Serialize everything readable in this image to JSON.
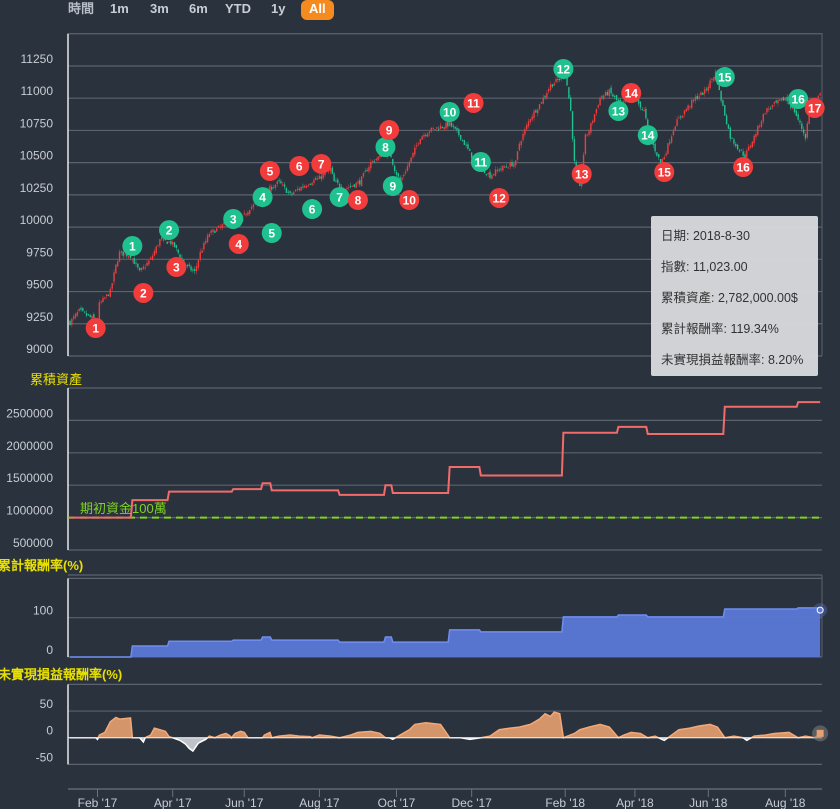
{
  "range_selector": {
    "label": "時間",
    "buttons": [
      "1m",
      "3m",
      "6m",
      "YTD",
      "1y",
      "All"
    ],
    "active": "All"
  },
  "tooltip": {
    "date": "日期: 2018-8-30",
    "index": "指數: 11,023.00",
    "assets": "累積資產: 2,782,000.00$",
    "cum_return": "累計報酬率: 119.34%",
    "unrealized": "未實現損益報酬率: 8.20%"
  },
  "colors": {
    "up": "#f23c3c",
    "down": "#1fc28e",
    "asset_line": "#f26b6b",
    "baseline": "#7ed321",
    "cum_fill": "#5a78d6",
    "unreal_pos": "#e8a070",
    "unreal_neg": "#e6e6e6",
    "title": "#e8e000",
    "accent": "#f58a1f"
  },
  "chart_data": [
    {
      "type": "candlestick",
      "title": "",
      "x_unit": "trading day index",
      "xlim": [
        0,
        410
      ],
      "ylim": [
        9000,
        11500
      ],
      "y_ticks": [
        "11250",
        "11000",
        "10750",
        "10500",
        "10250",
        "10000",
        "9750",
        "9500",
        "9250",
        "9000"
      ],
      "x_ticks": [
        {
          "day": 15,
          "label": "Feb '17"
        },
        {
          "day": 56,
          "label": "Apr '17"
        },
        {
          "day": 95,
          "label": "Jun '17"
        },
        {
          "day": 136,
          "label": "Aug '17"
        },
        {
          "day": 178,
          "label": "Oct '17"
        },
        {
          "day": 219,
          "label": "Dec '17"
        },
        {
          "day": 270,
          "label": "Feb '18"
        },
        {
          "day": 308,
          "label": "Apr '18"
        },
        {
          "day": 348,
          "label": "Jun '18"
        },
        {
          "day": 390,
          "label": "Aug '18"
        }
      ],
      "close_path": [
        [
          0,
          9260
        ],
        [
          5,
          9350
        ],
        [
          11,
          9300
        ],
        [
          15,
          9280
        ],
        [
          16,
          9400
        ],
        [
          22,
          9500
        ],
        [
          25,
          9700
        ],
        [
          27,
          9800
        ],
        [
          33,
          9780
        ],
        [
          38,
          9650
        ],
        [
          41,
          9700
        ],
        [
          44,
          9750
        ],
        [
          49,
          9900
        ],
        [
          55,
          9880
        ],
        [
          57,
          9850
        ],
        [
          63,
          9700
        ],
        [
          68,
          9650
        ],
        [
          71,
          9800
        ],
        [
          76,
          9950
        ],
        [
          82,
          10000
        ],
        [
          87,
          10050
        ],
        [
          93,
          10050
        ],
        [
          98,
          10150
        ],
        [
          104,
          10200
        ],
        [
          109,
          10300
        ],
        [
          114,
          10350
        ],
        [
          120,
          10250
        ],
        [
          125,
          10300
        ],
        [
          131,
          10350
        ],
        [
          136,
          10380
        ],
        [
          142,
          10450
        ],
        [
          144,
          10350
        ],
        [
          150,
          10300
        ],
        [
          158,
          10350
        ],
        [
          164,
          10500
        ],
        [
          169,
          10550
        ],
        [
          174,
          10600
        ],
        [
          177,
          10450
        ],
        [
          180,
          10350
        ],
        [
          185,
          10500
        ],
        [
          191,
          10700
        ],
        [
          196,
          10750
        ],
        [
          202,
          10780
        ],
        [
          207,
          10800
        ],
        [
          213,
          10700
        ],
        [
          215,
          10650
        ],
        [
          221,
          10500
        ],
        [
          229,
          10400
        ],
        [
          234,
          10450
        ],
        [
          243,
          10500
        ],
        [
          245,
          10650
        ],
        [
          251,
          10850
        ],
        [
          256,
          10950
        ],
        [
          262,
          11100
        ],
        [
          267,
          11150
        ],
        [
          270,
          11200
        ],
        [
          273,
          10900
        ],
        [
          275,
          10500
        ],
        [
          278,
          10300
        ],
        [
          281,
          10700
        ],
        [
          283,
          10750
        ],
        [
          289,
          11000
        ],
        [
          294,
          11050
        ],
        [
          300,
          10950
        ],
        [
          308,
          11000
        ],
        [
          313,
          10900
        ],
        [
          316,
          10700
        ],
        [
          322,
          10500
        ],
        [
          324,
          10550
        ],
        [
          330,
          10800
        ],
        [
          335,
          10900
        ],
        [
          341,
          11000
        ],
        [
          346,
          11050
        ],
        [
          352,
          11200
        ],
        [
          354,
          11050
        ],
        [
          360,
          10700
        ],
        [
          365,
          10600
        ],
        [
          368,
          10550
        ],
        [
          373,
          10700
        ],
        [
          379,
          10900
        ],
        [
          384,
          10950
        ],
        [
          390,
          11000
        ],
        [
          395,
          10900
        ],
        [
          401,
          10700
        ],
        [
          403,
          10900
        ],
        [
          409,
          11023
        ]
      ],
      "signals_green": [
        [
          1,
          34,
          9853
        ],
        [
          2,
          54,
          9977
        ],
        [
          3,
          89,
          10063
        ],
        [
          4,
          105,
          10233
        ],
        [
          5,
          110,
          9954
        ],
        [
          6,
          132,
          10140
        ],
        [
          7,
          147,
          10233
        ],
        [
          8,
          172,
          10621
        ],
        [
          9,
          176,
          10319
        ],
        [
          10,
          207,
          10893
        ],
        [
          11,
          224,
          10505
        ],
        [
          12,
          269,
          11227
        ],
        [
          13,
          299,
          10901
        ],
        [
          14,
          315,
          10714
        ],
        [
          15,
          357,
          11164
        ],
        [
          16,
          397,
          10994
        ]
      ],
      "signals_red": [
        [
          1,
          14,
          9217
        ],
        [
          2,
          40,
          9489
        ],
        [
          3,
          58,
          9690
        ],
        [
          4,
          92,
          9869
        ],
        [
          5,
          109,
          10435
        ],
        [
          6,
          125,
          10474
        ],
        [
          7,
          137,
          10490
        ],
        [
          8,
          157,
          10210
        ],
        [
          9,
          174,
          10753
        ],
        [
          10,
          185,
          10210
        ],
        [
          11,
          220,
          10963
        ],
        [
          12,
          234,
          10226
        ],
        [
          13,
          279,
          10412
        ],
        [
          14,
          306,
          11040
        ],
        [
          15,
          324,
          10427
        ],
        [
          16,
          367,
          10466
        ],
        [
          17,
          406,
          10924
        ]
      ]
    },
    {
      "type": "line",
      "title": "累積資產",
      "ylim": [
        500000,
        3000000
      ],
      "y_ticks": [
        "2500000",
        "2000000",
        "1500000",
        "1000000",
        "500000"
      ],
      "baseline": {
        "value": 1000000,
        "label": "期初資金100萬"
      },
      "steps": [
        [
          0,
          1000000
        ],
        [
          34,
          1270000
        ],
        [
          54,
          1400000
        ],
        [
          89,
          1440000
        ],
        [
          105,
          1530000
        ],
        [
          110,
          1420000
        ],
        [
          147,
          1350000
        ],
        [
          172,
          1500000
        ],
        [
          176,
          1380000
        ],
        [
          207,
          1780000
        ],
        [
          224,
          1650000
        ],
        [
          269,
          2310000
        ],
        [
          299,
          2400000
        ],
        [
          315,
          2290000
        ],
        [
          357,
          2710000
        ],
        [
          397,
          2782000
        ],
        [
          409,
          2782000
        ]
      ]
    },
    {
      "type": "area",
      "title": "累計報酬率(%)",
      "ylim": [
        0,
        200
      ],
      "y_ticks": [
        "100",
        "0"
      ],
      "steps": [
        [
          0,
          0
        ],
        [
          34,
          28
        ],
        [
          54,
          40
        ],
        [
          89,
          43
        ],
        [
          105,
          51
        ],
        [
          110,
          43
        ],
        [
          147,
          38
        ],
        [
          172,
          51
        ],
        [
          176,
          38
        ],
        [
          207,
          69
        ],
        [
          224,
          64
        ],
        [
          269,
          102
        ],
        [
          299,
          107
        ],
        [
          315,
          102
        ],
        [
          357,
          122
        ],
        [
          397,
          125
        ],
        [
          409,
          119.34
        ]
      ]
    },
    {
      "type": "area",
      "title": "未實現損益報酬率(%)",
      "ylim": [
        -50,
        100
      ],
      "y_ticks": [
        "50",
        "0",
        "-50"
      ],
      "points": [
        [
          0,
          0
        ],
        [
          14,
          0
        ],
        [
          15,
          -3
        ],
        [
          16,
          5
        ],
        [
          19,
          10
        ],
        [
          22,
          30
        ],
        [
          25,
          38
        ],
        [
          27,
          35
        ],
        [
          33,
          37
        ],
        [
          34,
          0
        ],
        [
          38,
          0
        ],
        [
          40,
          -8
        ],
        [
          41,
          0
        ],
        [
          44,
          5
        ],
        [
          46,
          18
        ],
        [
          49,
          15
        ],
        [
          52,
          12
        ],
        [
          54,
          2
        ],
        [
          56,
          0
        ],
        [
          60,
          -5
        ],
        [
          63,
          -12
        ],
        [
          65,
          -20
        ],
        [
          67,
          -25
        ],
        [
          70,
          -10
        ],
        [
          74,
          -3
        ],
        [
          76,
          3
        ],
        [
          79,
          0
        ],
        [
          82,
          5
        ],
        [
          85,
          8
        ],
        [
          87,
          4
        ],
        [
          88,
          0
        ],
        [
          90,
          8
        ],
        [
          93,
          12
        ],
        [
          95,
          10
        ],
        [
          97,
          0
        ],
        [
          105,
          0
        ],
        [
          106,
          5
        ],
        [
          109,
          10
        ],
        [
          110,
          0
        ],
        [
          114,
          3
        ],
        [
          120,
          5
        ],
        [
          125,
          3
        ],
        [
          131,
          2
        ],
        [
          132,
          0
        ],
        [
          136,
          5
        ],
        [
          142,
          3
        ],
        [
          147,
          0
        ],
        [
          153,
          5
        ],
        [
          157,
          10
        ],
        [
          164,
          12
        ],
        [
          169,
          8
        ],
        [
          172,
          0
        ],
        [
          174,
          0
        ],
        [
          176,
          -3
        ],
        [
          180,
          5
        ],
        [
          185,
          15
        ],
        [
          188,
          25
        ],
        [
          194,
          28
        ],
        [
          202,
          25
        ],
        [
          207,
          0
        ],
        [
          213,
          0
        ],
        [
          218,
          -3
        ],
        [
          224,
          0
        ],
        [
          229,
          3
        ],
        [
          234,
          15
        ],
        [
          240,
          18
        ],
        [
          245,
          20
        ],
        [
          251,
          25
        ],
        [
          256,
          35
        ],
        [
          259,
          45
        ],
        [
          262,
          40
        ],
        [
          264,
          48
        ],
        [
          267,
          45
        ],
        [
          269,
          0
        ],
        [
          275,
          8
        ],
        [
          278,
          15
        ],
        [
          283,
          20
        ],
        [
          289,
          25
        ],
        [
          294,
          20
        ],
        [
          299,
          0
        ],
        [
          302,
          5
        ],
        [
          306,
          10
        ],
        [
          311,
          8
        ],
        [
          315,
          0
        ],
        [
          319,
          3
        ],
        [
          324,
          -5
        ],
        [
          328,
          5
        ],
        [
          332,
          15
        ],
        [
          338,
          18
        ],
        [
          343,
          22
        ],
        [
          349,
          25
        ],
        [
          353,
          20
        ],
        [
          357,
          0
        ],
        [
          362,
          3
        ],
        [
          367,
          0
        ],
        [
          369,
          -5
        ],
        [
          373,
          3
        ],
        [
          379,
          5
        ],
        [
          384,
          8
        ],
        [
          392,
          10
        ],
        [
          397,
          0
        ],
        [
          401,
          3
        ],
        [
          406,
          0
        ],
        [
          409,
          8.2
        ]
      ]
    }
  ]
}
